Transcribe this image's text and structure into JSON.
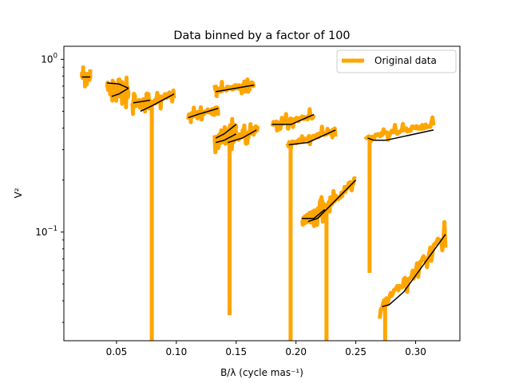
{
  "chart_data": {
    "type": "line",
    "title": "Data binned by a factor of 100",
    "xlabel": "B/λ (cycle mas⁻¹)",
    "ylabel": "V²",
    "xscale": "linear",
    "yscale": "log",
    "xlim": [
      0.006,
      0.337
    ],
    "ylim": [
      0.0235,
      1.19
    ],
    "grid": false,
    "legend": {
      "position": "top-right",
      "entries": [
        {
          "label": "Original data",
          "color": "#ffa500"
        }
      ]
    },
    "xticks": [
      {
        "value": 0.05,
        "label": "0.05"
      },
      {
        "value": 0.1,
        "label": "0.10"
      },
      {
        "value": 0.15,
        "label": "0.15"
      },
      {
        "value": 0.2,
        "label": "0.20"
      },
      {
        "value": 0.25,
        "label": "0.25"
      },
      {
        "value": 0.3,
        "label": "0.30"
      }
    ],
    "yticks": [
      {
        "value": 0.1,
        "base": "10",
        "exp": "−1"
      },
      {
        "value": 1.0,
        "base": "10",
        "exp": "0"
      }
    ],
    "yminor_ticks": [
      0.03,
      0.04,
      0.05,
      0.06,
      0.07,
      0.08,
      0.09,
      0.2,
      0.3,
      0.4,
      0.5,
      0.6,
      0.7,
      0.8,
      0.9
    ],
    "series": [
      {
        "name": "Original data",
        "color": "#ffa500",
        "segments": [
          {
            "x": [
              0.021,
              0.028
            ],
            "y": [
              0.8,
              0.79
            ],
            "noise": 0.04
          },
          {
            "x": [
              0.042,
              0.06
            ],
            "y": [
              0.7,
              0.62
            ],
            "noise": 0.06
          },
          {
            "x": [
              0.046,
              0.06
            ],
            "y": [
              0.62,
              0.67
            ],
            "noise": 0.05
          },
          {
            "x": [
              0.063,
              0.078
            ],
            "y": [
              0.55,
              0.58
            ],
            "noise": 0.04
          },
          {
            "x": [
              0.069,
              0.098
            ],
            "y": [
              0.52,
              0.64
            ],
            "noise": 0.04
          },
          {
            "x": [
              0.11,
              0.135
            ],
            "y": [
              0.47,
              0.52
            ],
            "noise": 0.03
          },
          {
            "x": [
              0.132,
              0.165
            ],
            "y": [
              0.66,
              0.72
            ],
            "noise": 0.03
          },
          {
            "x": [
              0.132,
              0.15
            ],
            "y": [
              0.34,
              0.41
            ],
            "noise": 0.04
          },
          {
            "x": [
              0.132,
              0.15
            ],
            "y": [
              0.32,
              0.38
            ],
            "noise": 0.04
          },
          {
            "x": [
              0.142,
              0.168
            ],
            "y": [
              0.33,
              0.4
            ],
            "noise": 0.04
          },
          {
            "x": [
              0.18,
              0.215
            ],
            "y": [
              0.42,
              0.47
            ],
            "noise": 0.03
          },
          {
            "x": [
              0.193,
              0.233
            ],
            "y": [
              0.32,
              0.39
            ],
            "noise": 0.03
          },
          {
            "x": [
              0.205,
              0.225
            ],
            "y": [
              0.115,
              0.14
            ],
            "noise": 0.05
          },
          {
            "x": [
              0.21,
              0.25
            ],
            "y": [
              0.112,
              0.2
            ],
            "noise": 0.05
          },
          {
            "x": [
              0.258,
              0.315
            ],
            "y": [
              0.35,
              0.42
            ],
            "noise": 0.03
          },
          {
            "x": [
              0.27,
              0.325
            ],
            "y": [
              0.036,
              0.097
            ],
            "noise": 0.06
          }
        ],
        "drops": [
          {
            "x": 0.0795,
            "y_from": 0.55,
            "y_to": 0.0235
          },
          {
            "x": 0.1445,
            "y_from": 0.33,
            "y_to": 0.033
          },
          {
            "x": 0.1955,
            "y_from": 0.32,
            "y_to": 0.0235
          },
          {
            "x": 0.2255,
            "y_from": 0.14,
            "y_to": 0.0235
          },
          {
            "x": 0.2615,
            "y_from": 0.36,
            "y_to": 0.058
          },
          {
            "x": 0.2745,
            "y_from": 0.04,
            "y_to": 0.0235
          }
        ]
      },
      {
        "name": "",
        "color": "#000000",
        "segments": [
          {
            "x": [
              0.021,
              0.028
            ],
            "y": [
              0.79,
              0.79
            ]
          },
          {
            "x": [
              0.042,
              0.052,
              0.06
            ],
            "y": [
              0.73,
              0.72,
              0.68
            ]
          },
          {
            "x": [
              0.046,
              0.052,
              0.06
            ],
            "y": [
              0.61,
              0.63,
              0.68
            ]
          },
          {
            "x": [
              0.064,
              0.078
            ],
            "y": [
              0.56,
              0.58
            ]
          },
          {
            "x": [
              0.07,
              0.08,
              0.098
            ],
            "y": [
              0.5,
              0.54,
              0.63
            ]
          },
          {
            "x": [
              0.11,
              0.118,
              0.135
            ],
            "y": [
              0.46,
              0.48,
              0.52
            ]
          },
          {
            "x": [
              0.133,
              0.165
            ],
            "y": [
              0.65,
              0.71
            ]
          },
          {
            "x": [
              0.133,
              0.14,
              0.15
            ],
            "y": [
              0.35,
              0.37,
              0.42
            ]
          },
          {
            "x": [
              0.133,
              0.14,
              0.15
            ],
            "y": [
              0.33,
              0.34,
              0.37
            ]
          },
          {
            "x": [
              0.143,
              0.155,
              0.167
            ],
            "y": [
              0.33,
              0.35,
              0.39
            ]
          },
          {
            "x": [
              0.18,
              0.196,
              0.215
            ],
            "y": [
              0.42,
              0.42,
              0.48
            ]
          },
          {
            "x": [
              0.194,
              0.21,
              0.233
            ],
            "y": [
              0.32,
              0.33,
              0.39
            ]
          },
          {
            "x": [
              0.205,
              0.215,
              0.224
            ],
            "y": [
              0.12,
              0.12,
              0.135
            ]
          },
          {
            "x": [
              0.21,
              0.218,
              0.25
            ],
            "y": [
              0.115,
              0.12,
              0.2
            ]
          },
          {
            "x": [
              0.26,
              0.265,
              0.275,
              0.315
            ],
            "y": [
              0.35,
              0.34,
              0.34,
              0.39
            ]
          },
          {
            "x": [
              0.272,
              0.278,
              0.29,
              0.325
            ],
            "y": [
              0.037,
              0.038,
              0.045,
              0.097
            ]
          }
        ]
      }
    ]
  }
}
